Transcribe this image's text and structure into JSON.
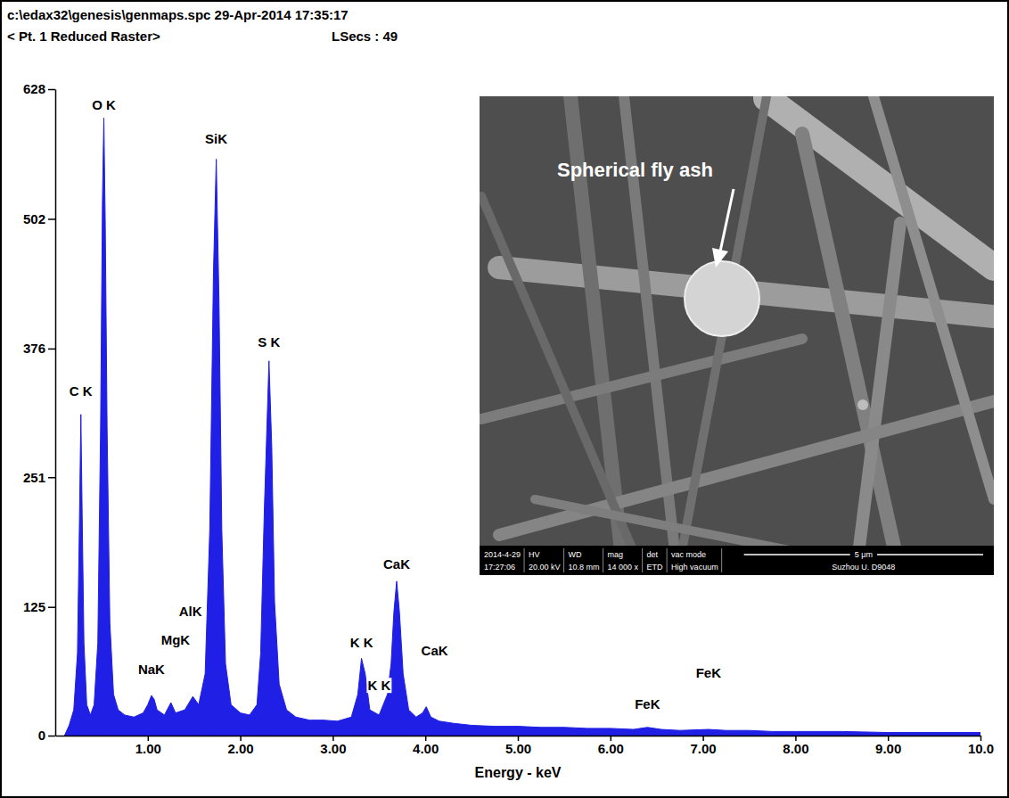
{
  "header": {
    "file": "c:\\edax32\\genesis\\genmaps.spc  29-Apr-2014 17:35:17",
    "subtitle": "< Pt. 1 Reduced Raster>",
    "live_time": "LSecs : 49"
  },
  "chart_data": {
    "type": "area",
    "x_label": "Energy - keV",
    "color": "#1f1fe6",
    "x": [
      0.1,
      0.15,
      0.2,
      0.24,
      0.26,
      0.277,
      0.29,
      0.31,
      0.34,
      0.38,
      0.42,
      0.46,
      0.49,
      0.51,
      0.525,
      0.54,
      0.56,
      0.59,
      0.63,
      0.68,
      0.75,
      0.85,
      0.95,
      1.0,
      1.04,
      1.07,
      1.1,
      1.18,
      1.25,
      1.3,
      1.4,
      1.487,
      1.55,
      1.62,
      1.67,
      1.71,
      1.74,
      1.77,
      1.8,
      1.84,
      1.9,
      2.0,
      2.1,
      2.18,
      2.22,
      2.26,
      2.31,
      2.34,
      2.37,
      2.42,
      2.5,
      2.6,
      2.75,
      2.9,
      3.05,
      3.2,
      3.27,
      3.31,
      3.35,
      3.4,
      3.5,
      3.59,
      3.63,
      3.66,
      3.69,
      3.72,
      3.76,
      3.82,
      3.9,
      3.97,
      4.01,
      4.06,
      4.15,
      4.3,
      4.5,
      4.75,
      5.0,
      5.25,
      5.5,
      5.75,
      6.0,
      6.25,
      6.4,
      6.55,
      6.75,
      7.06,
      7.25,
      7.5,
      7.75,
      8.0,
      8.5,
      9.0,
      9.5,
      10.0
    ],
    "values": [
      0,
      10,
      25,
      80,
      200,
      312,
      220,
      90,
      30,
      20,
      30,
      90,
      300,
      520,
      600,
      500,
      300,
      110,
      40,
      25,
      20,
      18,
      22,
      30,
      39,
      35,
      25,
      20,
      32,
      22,
      25,
      38,
      30,
      60,
      200,
      450,
      560,
      420,
      200,
      70,
      30,
      22,
      20,
      30,
      80,
      220,
      364,
      280,
      130,
      50,
      25,
      18,
      15,
      15,
      14,
      18,
      40,
      75,
      60,
      25,
      20,
      40,
      70,
      120,
      150,
      120,
      60,
      25,
      18,
      22,
      28,
      18,
      14,
      12,
      10,
      9,
      9,
      8,
      8,
      7,
      7,
      6,
      8,
      6,
      5,
      6,
      5,
      5,
      4,
      4,
      4,
      3,
      3,
      3
    ],
    "xlim": [
      0,
      10
    ],
    "xticks": [
      {
        "value": 1,
        "label": "1.00"
      },
      {
        "value": 2,
        "label": "2.00"
      },
      {
        "value": 3,
        "label": "3.00"
      },
      {
        "value": 4,
        "label": "4.00"
      },
      {
        "value": 5,
        "label": "5.00"
      },
      {
        "value": 6,
        "label": "6.00"
      },
      {
        "value": 7,
        "label": "7.00"
      },
      {
        "value": 8,
        "label": "8.00"
      },
      {
        "value": 9,
        "label": "9.00"
      },
      {
        "value": 10,
        "label": "10.0"
      }
    ],
    "ylim": [
      0,
      628
    ],
    "yticks": [
      0,
      125,
      251,
      376,
      502,
      628
    ],
    "annotations": [
      {
        "text": "C K",
        "x": 0.277,
        "y": 330
      },
      {
        "text": "O K",
        "x": 0.525,
        "y": 608
      },
      {
        "text": "SiK",
        "x": 1.74,
        "y": 575
      },
      {
        "text": "S K",
        "x": 2.31,
        "y": 378
      },
      {
        "text": "NaK",
        "x": 1.04,
        "y": 60
      },
      {
        "text": "MgK",
        "x": 1.3,
        "y": 88
      },
      {
        "text": "AlK",
        "x": 1.46,
        "y": 116
      },
      {
        "text": "K K",
        "x": 3.31,
        "y": 86
      },
      {
        "text": "K K",
        "x": 3.5,
        "y": 44
      },
      {
        "text": "CaK",
        "x": 3.69,
        "y": 162
      },
      {
        "text": "CaK",
        "x": 4.1,
        "y": 78
      },
      {
        "text": "FeK",
        "x": 6.4,
        "y": 26
      },
      {
        "text": "FeK",
        "x": 7.06,
        "y": 56
      }
    ]
  },
  "inset": {
    "label": "Spherical fly ash",
    "info_bar": {
      "headers": [
        "2014-4-29",
        "HV",
        "WD",
        "mag",
        "det",
        "vac mode"
      ],
      "values": [
        "17:27:06",
        "20.00 kV",
        "10.8 mm",
        "14 000 x",
        "ETD",
        "High vacuum"
      ],
      "scale_bar": "5 μm",
      "id": "Suzhou U. D9048"
    }
  }
}
